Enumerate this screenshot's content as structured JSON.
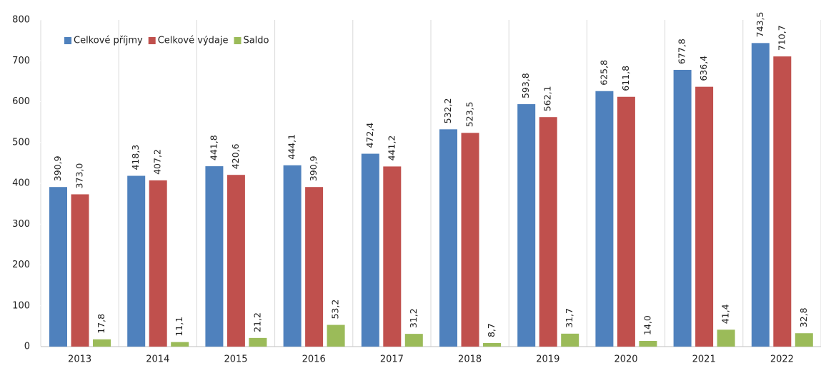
{
  "chart_data": {
    "type": "bar",
    "categories": [
      "2013",
      "2014",
      "2015",
      "2016",
      "2017",
      "2018",
      "2019",
      "2020",
      "2021",
      "2022"
    ],
    "series": [
      {
        "name": "Celkové příjmy",
        "color": "#4f81bd",
        "values": [
          390.9,
          418.3,
          441.8,
          444.1,
          472.4,
          532.2,
          593.8,
          625.8,
          677.8,
          743.5
        ],
        "value_labels": [
          "390,9",
          "418,3",
          "441,8",
          "444,1",
          "472,4",
          "532,2",
          "593,8",
          "625,8",
          "677,8",
          "743,5"
        ]
      },
      {
        "name": "Celkové výdaje",
        "color": "#c0504d",
        "values": [
          373.0,
          407.2,
          420.6,
          390.9,
          441.2,
          523.5,
          562.1,
          611.8,
          636.4,
          710.7
        ],
        "value_labels": [
          "373,0",
          "407,2",
          "420,6",
          "390,9",
          "441,2",
          "523,5",
          "562,1",
          "611,8",
          "636,4",
          "710,7"
        ]
      },
      {
        "name": "Saldo",
        "color": "#9bbb59",
        "values": [
          17.8,
          11.1,
          21.2,
          53.2,
          31.2,
          8.7,
          31.7,
          14.0,
          41.4,
          32.8
        ],
        "value_labels": [
          "17,8",
          "11,1",
          "21,2",
          "53,2",
          "31,2",
          "8,7",
          "31,7",
          "14,0",
          "41,4",
          "32,8"
        ]
      }
    ],
    "ylim": [
      0,
      800
    ],
    "yticks": [
      0,
      100,
      200,
      300,
      400,
      500,
      600,
      700,
      800
    ],
    "legend": "top-left"
  }
}
